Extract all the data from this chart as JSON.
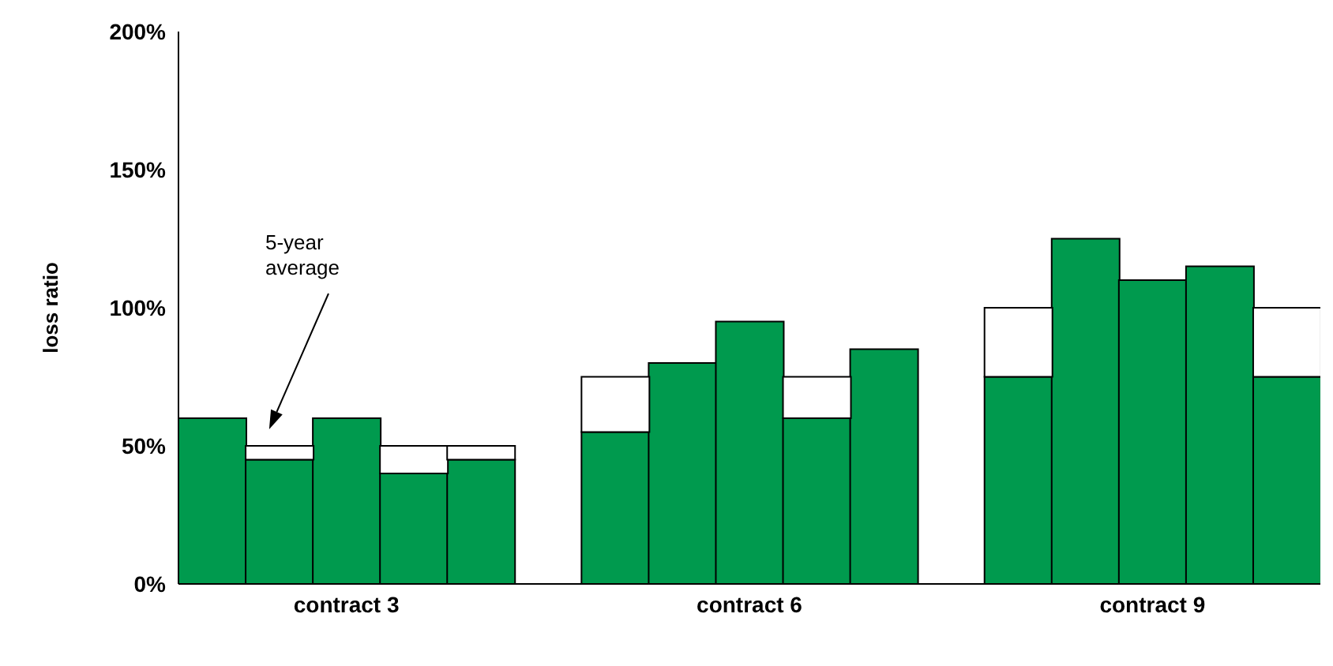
{
  "chart_data": {
    "type": "bar",
    "ylabel": "loss ratio",
    "categories": [
      null,
      null,
      "contract 3",
      null,
      null,
      null,
      null,
      null,
      "contract 6",
      null,
      null,
      null,
      null,
      null,
      "contract 9",
      null,
      null
    ],
    "series": [
      {
        "color": "#009a4e",
        "values": [
          60,
          45,
          60,
          40,
          45,
          null,
          55,
          80,
          95,
          60,
          85,
          null,
          75,
          125,
          110,
          115,
          75
        ]
      },
      {
        "color": "#ffffff",
        "values": [
          null,
          5,
          null,
          10,
          5,
          null,
          20,
          null,
          null,
          15,
          null,
          null,
          25,
          null,
          null,
          null,
          25
        ]
      }
    ],
    "stacked": true,
    "ylim": [
      0,
      200
    ],
    "yticks": [
      {
        "value": 0,
        "label": "0%"
      },
      {
        "value": 50,
        "label": "50%"
      },
      {
        "value": 100,
        "label": "100%"
      },
      {
        "value": 150,
        "label": "150%"
      },
      {
        "value": 200,
        "label": "200%"
      }
    ],
    "annotations": [
      "5-year average"
    ],
    "grid": false,
    "legend": false
  }
}
